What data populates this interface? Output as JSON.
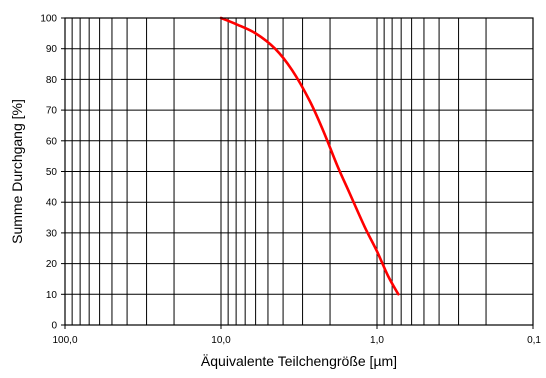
{
  "chart_data": {
    "type": "line",
    "title": "",
    "xlabel": "Äquivalente Teilchengröße [µm]",
    "ylabel": "Summe Durchgang [%]",
    "x_scale": "log",
    "x_reversed": true,
    "xlim": [
      100,
      0.1
    ],
    "ylim": [
      0,
      100
    ],
    "grid": true,
    "legend": "none",
    "x_ticks": [
      100,
      10,
      1,
      0.1
    ],
    "x_tick_labels": [
      "100,0",
      "10,0",
      "1,0",
      "0,1"
    ],
    "y_ticks": [
      0,
      10,
      20,
      30,
      40,
      50,
      60,
      70,
      80,
      90,
      100
    ],
    "y_tick_labels": [
      "0",
      "10",
      "20",
      "30",
      "40",
      "50",
      "60",
      "70",
      "80",
      "90",
      "100"
    ],
    "series": [
      {
        "color": "#ff0000",
        "x": [
          10,
          8,
          6,
          4.5,
          3.5,
          2.7,
          2.2,
          1.8,
          1.5,
          1.2,
          1.0,
          0.85,
          0.73
        ],
        "y": [
          100,
          98,
          95,
          90,
          83,
          73,
          63,
          52,
          43,
          32,
          24,
          16,
          10
        ]
      }
    ]
  }
}
